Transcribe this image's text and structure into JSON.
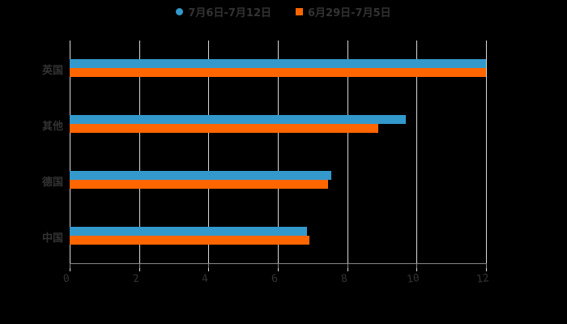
{
  "chart_data": {
    "type": "bar",
    "orientation": "horizontal",
    "title": "",
    "xlabel": "",
    "ylabel": "",
    "categories": [
      "英国",
      "其他",
      "德国",
      "中国"
    ],
    "series": [
      {
        "name": "7月6日-7月12日",
        "color": "#3399cc",
        "values": [
          12,
          9.7,
          7.55,
          6.85
        ]
      },
      {
        "name": "6月29日-7月5日",
        "color": "#ff6600",
        "values": [
          12,
          8.9,
          7.45,
          6.9
        ]
      }
    ],
    "xlim": [
      0,
      12
    ],
    "x_ticks": [
      "0",
      "2",
      "4",
      "6",
      "8",
      "10",
      "12"
    ],
    "grid": true,
    "legend_position": "top"
  },
  "legend": {
    "items": [
      {
        "label": "7月6日-7月12日",
        "color": "#3399cc",
        "shape": "circle"
      },
      {
        "label": "6月29日-7月5日",
        "color": "#ff6600",
        "shape": "square"
      }
    ]
  },
  "colors": {
    "background": "#000000",
    "grid": "#d9d9d9",
    "text": "#333333"
  }
}
